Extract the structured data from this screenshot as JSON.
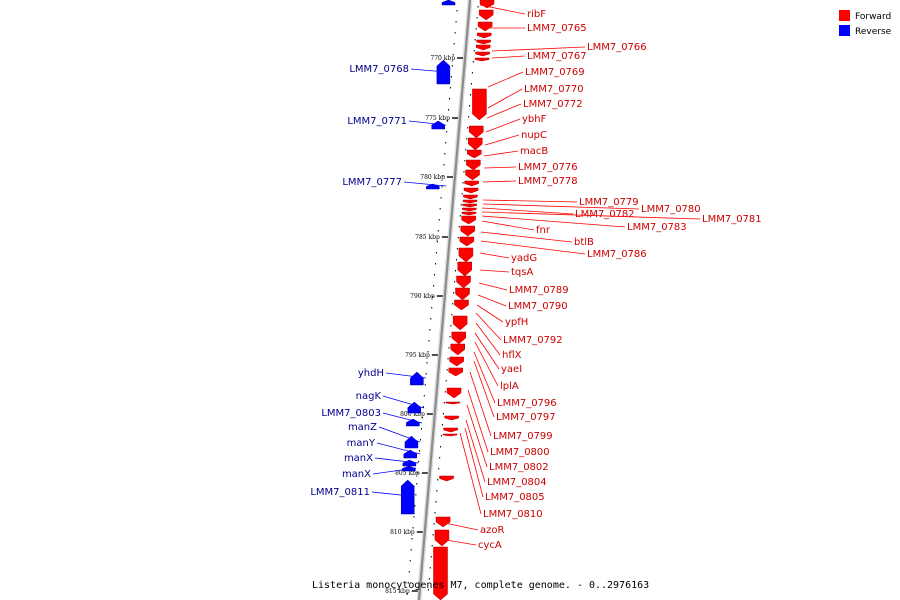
{
  "colors": {
    "forward": "#ff0000",
    "reverse": "#0000ff",
    "forward_text": "#cc0000",
    "reverse_text": "#00008b",
    "backbone": "#8c8c8c"
  },
  "legend": {
    "forward": "Forward",
    "reverse": "Reverse"
  },
  "caption": "Listeria monocytogenes M7, complete genome. - 0..2976163",
  "ticks": [
    "770 kbp",
    "775 kbp",
    "780 kbp",
    "785 kbp",
    "790 kbp",
    "795 kbp",
    "800 kbp",
    "805 kbp",
    "810 kbp",
    "815 kbp"
  ],
  "forward_genes": [
    "ribF",
    "LMM7_0765",
    "LMM7_0766",
    "LMM7_0767",
    "LMM7_0769",
    "LMM7_0770",
    "LMM7_0772",
    "ybhF",
    "nupC",
    "macB",
    "LMM7_0776",
    "LMM7_0778",
    "LMM7_0779",
    "LMM7_0780",
    "LMM7_0782",
    "LMM7_0781",
    "LMM7_0783",
    "fnr",
    "btlB",
    "LMM7_0786",
    "yadG",
    "tqsA",
    "LMM7_0789",
    "LMM7_0790",
    "ypfH",
    "LMM7_0792",
    "hflX",
    "yaeI",
    "lplA",
    "LMM7_0796",
    "LMM7_0797",
    "LMM7_0799",
    "LMM7_0800",
    "LMM7_0802",
    "LMM7_0804",
    "LMM7_0805",
    "LMM7_0810",
    "azoR",
    "cycA"
  ],
  "reverse_genes": [
    "LMM7_0768",
    "LMM7_0771",
    "LMM7_0777",
    "yhdH",
    "nagK",
    "LMM7_0803",
    "manZ",
    "manY",
    "manX",
    "manX",
    "LMM7_0811"
  ]
}
